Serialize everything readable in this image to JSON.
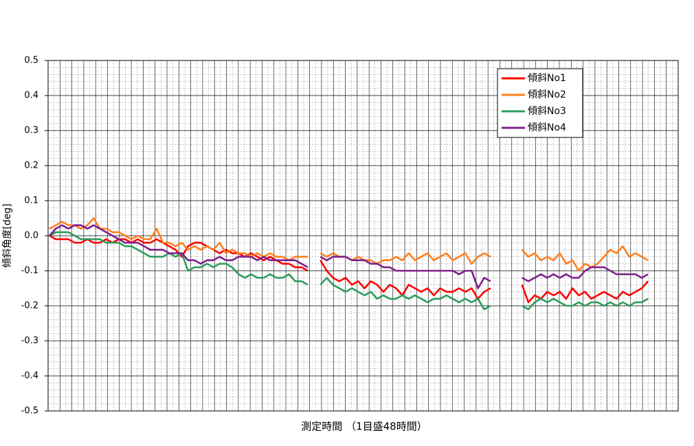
{
  "chart_data": {
    "type": "line",
    "x_label": "測定時間 （1目盛48時間）",
    "y_label": "傾斜角度[deg]",
    "ylim": [
      -0.5,
      0.5
    ],
    "yticks": [
      0.5,
      0.4,
      0.3,
      0.2,
      0.1,
      {
        "value": 0,
        "label": "0.0"
      },
      -0.1,
      -0.2,
      -0.3,
      -0.4,
      -0.5
    ],
    "grid": true,
    "legend": "upper right",
    "series": [
      {
        "name": "傾斜No1",
        "color": "#ff0000",
        "values": [
          0,
          -0.01,
          -0.01,
          -0.01,
          -0.02,
          -0.02,
          -0.01,
          -0.02,
          -0.02,
          -0.01,
          -0.02,
          -0.01,
          -0.01,
          -0.02,
          -0.01,
          -0.02,
          -0.02,
          -0.01,
          -0.02,
          -0.03,
          -0.04,
          -0.06,
          -0.03,
          -0.02,
          -0.02,
          -0.03,
          -0.04,
          -0.05,
          -0.04,
          -0.05,
          -0.05,
          -0.06,
          -0.05,
          -0.06,
          -0.07,
          -0.06,
          -0.07,
          -0.08,
          -0.08,
          -0.09,
          -0.09,
          -0.1,
          null,
          -0.07,
          -0.1,
          -0.12,
          -0.13,
          -0.12,
          -0.14,
          -0.13,
          -0.15,
          -0.13,
          -0.14,
          -0.16,
          -0.14,
          -0.15,
          -0.17,
          -0.14,
          -0.15,
          -0.16,
          -0.15,
          -0.17,
          -0.15,
          -0.16,
          -0.16,
          -0.15,
          -0.16,
          -0.15,
          -0.18,
          -0.16,
          -0.15,
          null,
          null,
          null,
          null,
          -0.14,
          -0.19,
          -0.17,
          -0.18,
          -0.16,
          -0.17,
          -0.16,
          -0.18,
          -0.15,
          -0.17,
          -0.16,
          -0.18,
          -0.17,
          -0.16,
          -0.17,
          -0.18,
          -0.16,
          -0.17,
          -0.16,
          -0.15,
          -0.13,
          null,
          null,
          null,
          null
        ]
      },
      {
        "name": "傾斜No2",
        "color": "#ff7f1e",
        "values": [
          0.02,
          0.03,
          0.04,
          0.03,
          0.03,
          0.02,
          0.03,
          0.05,
          0.02,
          0.02,
          0.01,
          0.01,
          0,
          -0.01,
          0,
          -0.01,
          -0.01,
          0.02,
          -0.02,
          -0.02,
          -0.03,
          -0.02,
          -0.04,
          -0.03,
          -0.04,
          -0.03,
          -0.04,
          -0.02,
          -0.05,
          -0.04,
          -0.05,
          -0.05,
          -0.06,
          -0.05,
          -0.06,
          -0.05,
          -0.06,
          -0.06,
          -0.07,
          -0.06,
          -0.06,
          -0.06,
          null,
          -0.05,
          -0.06,
          -0.05,
          -0.06,
          -0.06,
          -0.07,
          -0.06,
          -0.07,
          -0.07,
          -0.08,
          -0.07,
          -0.07,
          -0.06,
          -0.07,
          -0.05,
          -0.07,
          -0.06,
          -0.05,
          -0.07,
          -0.06,
          -0.05,
          -0.07,
          -0.06,
          -0.05,
          -0.08,
          -0.06,
          -0.05,
          -0.06,
          null,
          null,
          null,
          null,
          -0.04,
          -0.06,
          -0.05,
          -0.07,
          -0.06,
          -0.07,
          -0.05,
          -0.08,
          -0.07,
          -0.1,
          -0.08,
          -0.09,
          -0.08,
          -0.06,
          -0.04,
          -0.05,
          -0.03,
          -0.06,
          -0.05,
          -0.06,
          -0.07,
          null,
          null,
          null,
          null
        ]
      },
      {
        "name": "傾斜No3",
        "color": "#2e9b5e",
        "values": [
          0,
          0.01,
          0.01,
          0.01,
          0,
          -0.01,
          -0.01,
          -0.01,
          -0.01,
          -0.02,
          -0.02,
          -0.02,
          -0.03,
          -0.03,
          -0.04,
          -0.05,
          -0.06,
          -0.06,
          -0.06,
          -0.05,
          -0.06,
          -0.05,
          -0.1,
          -0.09,
          -0.09,
          -0.08,
          -0.09,
          -0.08,
          -0.08,
          -0.09,
          -0.11,
          -0.12,
          -0.11,
          -0.12,
          -0.12,
          -0.11,
          -0.12,
          -0.12,
          -0.11,
          -0.13,
          -0.13,
          -0.14,
          null,
          -0.14,
          -0.12,
          -0.14,
          -0.15,
          -0.16,
          -0.15,
          -0.16,
          -0.17,
          -0.16,
          -0.18,
          -0.17,
          -0.18,
          -0.18,
          -0.17,
          -0.18,
          -0.17,
          -0.18,
          -0.19,
          -0.18,
          -0.18,
          -0.17,
          -0.18,
          -0.19,
          -0.18,
          -0.19,
          -0.18,
          -0.21,
          -0.2,
          null,
          null,
          null,
          null,
          -0.2,
          -0.21,
          -0.19,
          -0.18,
          -0.19,
          -0.18,
          -0.19,
          -0.2,
          -0.2,
          -0.19,
          -0.2,
          -0.19,
          -0.19,
          -0.2,
          -0.19,
          -0.2,
          -0.19,
          -0.2,
          -0.19,
          -0.19,
          -0.18,
          null,
          null,
          null,
          null
        ]
      },
      {
        "name": "傾斜No4",
        "color": "#7f1f8c",
        "values": [
          0,
          0.02,
          0.03,
          0.02,
          0.03,
          0.03,
          0.02,
          0.03,
          0.02,
          0.01,
          0,
          -0.01,
          -0.02,
          -0.02,
          -0.02,
          -0.03,
          -0.04,
          -0.04,
          -0.04,
          -0.05,
          -0.05,
          -0.05,
          -0.07,
          -0.07,
          -0.08,
          -0.07,
          -0.07,
          -0.06,
          -0.07,
          -0.07,
          -0.06,
          -0.06,
          -0.06,
          -0.07,
          -0.06,
          -0.07,
          -0.07,
          -0.07,
          -0.07,
          -0.07,
          -0.08,
          -0.09,
          null,
          -0.06,
          -0.07,
          -0.06,
          -0.06,
          -0.06,
          -0.07,
          -0.07,
          -0.07,
          -0.08,
          -0.08,
          -0.09,
          -0.09,
          -0.1,
          -0.1,
          -0.1,
          -0.1,
          -0.1,
          -0.1,
          -0.1,
          -0.1,
          -0.1,
          -0.1,
          -0.11,
          -0.1,
          -0.1,
          -0.15,
          -0.12,
          -0.13,
          null,
          null,
          null,
          null,
          -0.12,
          -0.13,
          -0.12,
          -0.11,
          -0.12,
          -0.11,
          -0.12,
          -0.11,
          -0.12,
          -0.12,
          -0.1,
          -0.09,
          -0.09,
          -0.09,
          -0.1,
          -0.11,
          -0.11,
          -0.11,
          -0.11,
          -0.12,
          -0.11,
          null,
          null,
          null,
          null
        ]
      }
    ]
  }
}
